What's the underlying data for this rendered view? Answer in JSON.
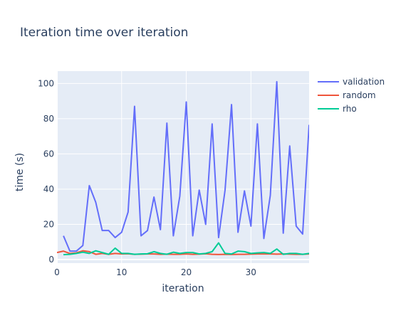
{
  "chart_data": {
    "type": "line",
    "title": "Iteration time over iteration",
    "xlabel": "iteration",
    "ylabel": "time (s)",
    "xlim": [
      0,
      39
    ],
    "ylim": [
      -2,
      107
    ],
    "xticks": [
      0,
      10,
      20,
      30
    ],
    "yticks": [
      0,
      20,
      40,
      60,
      80,
      100
    ],
    "grid": true,
    "legend_position": "top-right",
    "background": "#e5ecf6",
    "x": [
      1,
      2,
      3,
      4,
      5,
      6,
      7,
      8,
      9,
      10,
      11,
      12,
      13,
      14,
      15,
      16,
      17,
      18,
      19,
      20,
      21,
      22,
      23,
      24,
      25,
      26,
      27,
      28,
      29,
      30,
      31,
      32,
      33,
      34,
      35,
      36,
      37,
      38,
      39
    ],
    "series": [
      {
        "name": "validation",
        "color": "#636efa",
        "x": [
          1,
          2,
          3,
          4,
          5,
          6,
          7,
          8,
          9,
          10,
          11,
          12,
          13,
          14,
          15,
          16,
          17,
          18,
          19,
          20,
          21,
          22,
          23,
          24,
          25,
          26,
          27,
          28,
          29,
          30,
          31,
          32,
          33,
          34,
          35,
          36,
          37,
          38,
          39
        ],
        "values": [
          13.5,
          4.8,
          4.8,
          8.0,
          42.0,
          32.5,
          16.5,
          16.5,
          12.5,
          15.5,
          27.0,
          87.0,
          13.5,
          16.5,
          35.5,
          17.0,
          77.5,
          13.5,
          36.0,
          89.5,
          13.5,
          39.5,
          20.0,
          77.0,
          12.5,
          39.5,
          88.0,
          15.5,
          39.0,
          19.0,
          77.0,
          12.0,
          36.5,
          101.0,
          15.0,
          64.5,
          19.0,
          14.5,
          76.5
        ]
      },
      {
        "name": "random",
        "color": "#ef553b",
        "x": [
          0,
          1,
          2,
          3,
          4,
          5,
          6,
          7,
          8,
          9,
          10,
          11,
          12,
          13,
          14,
          15,
          16,
          17,
          18,
          19,
          20,
          21,
          22,
          23,
          24,
          25,
          26,
          27,
          28,
          29,
          30,
          31,
          32,
          33,
          34,
          35,
          36,
          37,
          38,
          39
        ],
        "values": [
          4.0,
          4.8,
          3.5,
          3.8,
          5.0,
          4.5,
          3.0,
          3.5,
          3.0,
          3.5,
          3.2,
          3.3,
          3.0,
          3.1,
          3.2,
          3.2,
          3.0,
          3.1,
          3.0,
          3.0,
          3.2,
          3.0,
          3.1,
          3.3,
          3.0,
          2.9,
          3.0,
          2.9,
          3.0,
          3.0,
          3.1,
          3.2,
          3.2,
          3.2,
          3.1,
          3.2,
          3.1,
          3.0,
          3.0,
          3.2
        ]
      },
      {
        "name": "rho",
        "color": "#00cc96",
        "x": [
          1,
          2,
          3,
          4,
          5,
          6,
          7,
          8,
          9,
          10,
          11,
          12,
          13,
          14,
          15,
          16,
          17,
          18,
          19,
          20,
          21,
          22,
          23,
          24,
          25,
          26,
          27,
          28,
          29,
          30,
          31,
          32,
          33,
          34,
          35,
          36,
          37,
          38,
          39
        ],
        "values": [
          2.8,
          3.0,
          3.5,
          4.2,
          3.5,
          5.0,
          4.0,
          3.0,
          6.5,
          3.5,
          3.5,
          3.0,
          3.2,
          3.3,
          4.5,
          3.5,
          3.0,
          4.2,
          3.5,
          4.0,
          4.0,
          3.2,
          3.5,
          4.5,
          9.5,
          3.5,
          3.2,
          4.8,
          4.5,
          3.5,
          3.8,
          4.0,
          3.5,
          6.0,
          3.0,
          3.5,
          3.5,
          3.0,
          3.5
        ]
      }
    ]
  }
}
